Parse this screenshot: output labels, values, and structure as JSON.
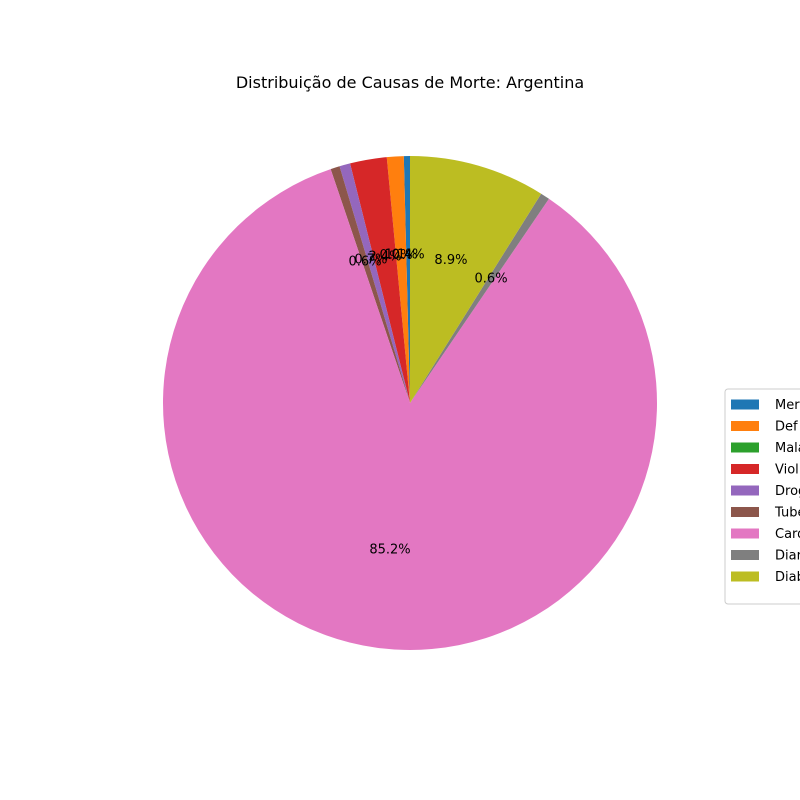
{
  "chart_data": {
    "type": "pie",
    "title": "Distribuição de Causas de Morte: Argentina",
    "labels": [
      "Mer",
      "Def",
      "Mala",
      "Viol",
      "Drog",
      "Tube",
      "Card",
      "Diar",
      "Diab"
    ],
    "values": [
      0.4,
      1.1,
      0.0,
      2.4,
      0.7,
      0.6,
      85.2,
      0.6,
      8.9
    ],
    "pct_labels": [
      "0.4%",
      "1.1%",
      "0.0%",
      "2.4%",
      "0.7%",
      "0.6%",
      "85.2%",
      "0.6%",
      "8.9%"
    ],
    "colors": [
      "#1f77b4",
      "#ff7f0e",
      "#2ca02c",
      "#d62728",
      "#9467bd",
      "#8c564b",
      "#e377c2",
      "#7f7f7f",
      "#bcbd22"
    ],
    "start_angle_deg": 90,
    "direction": "counterclockwise",
    "legend_position": "right"
  }
}
